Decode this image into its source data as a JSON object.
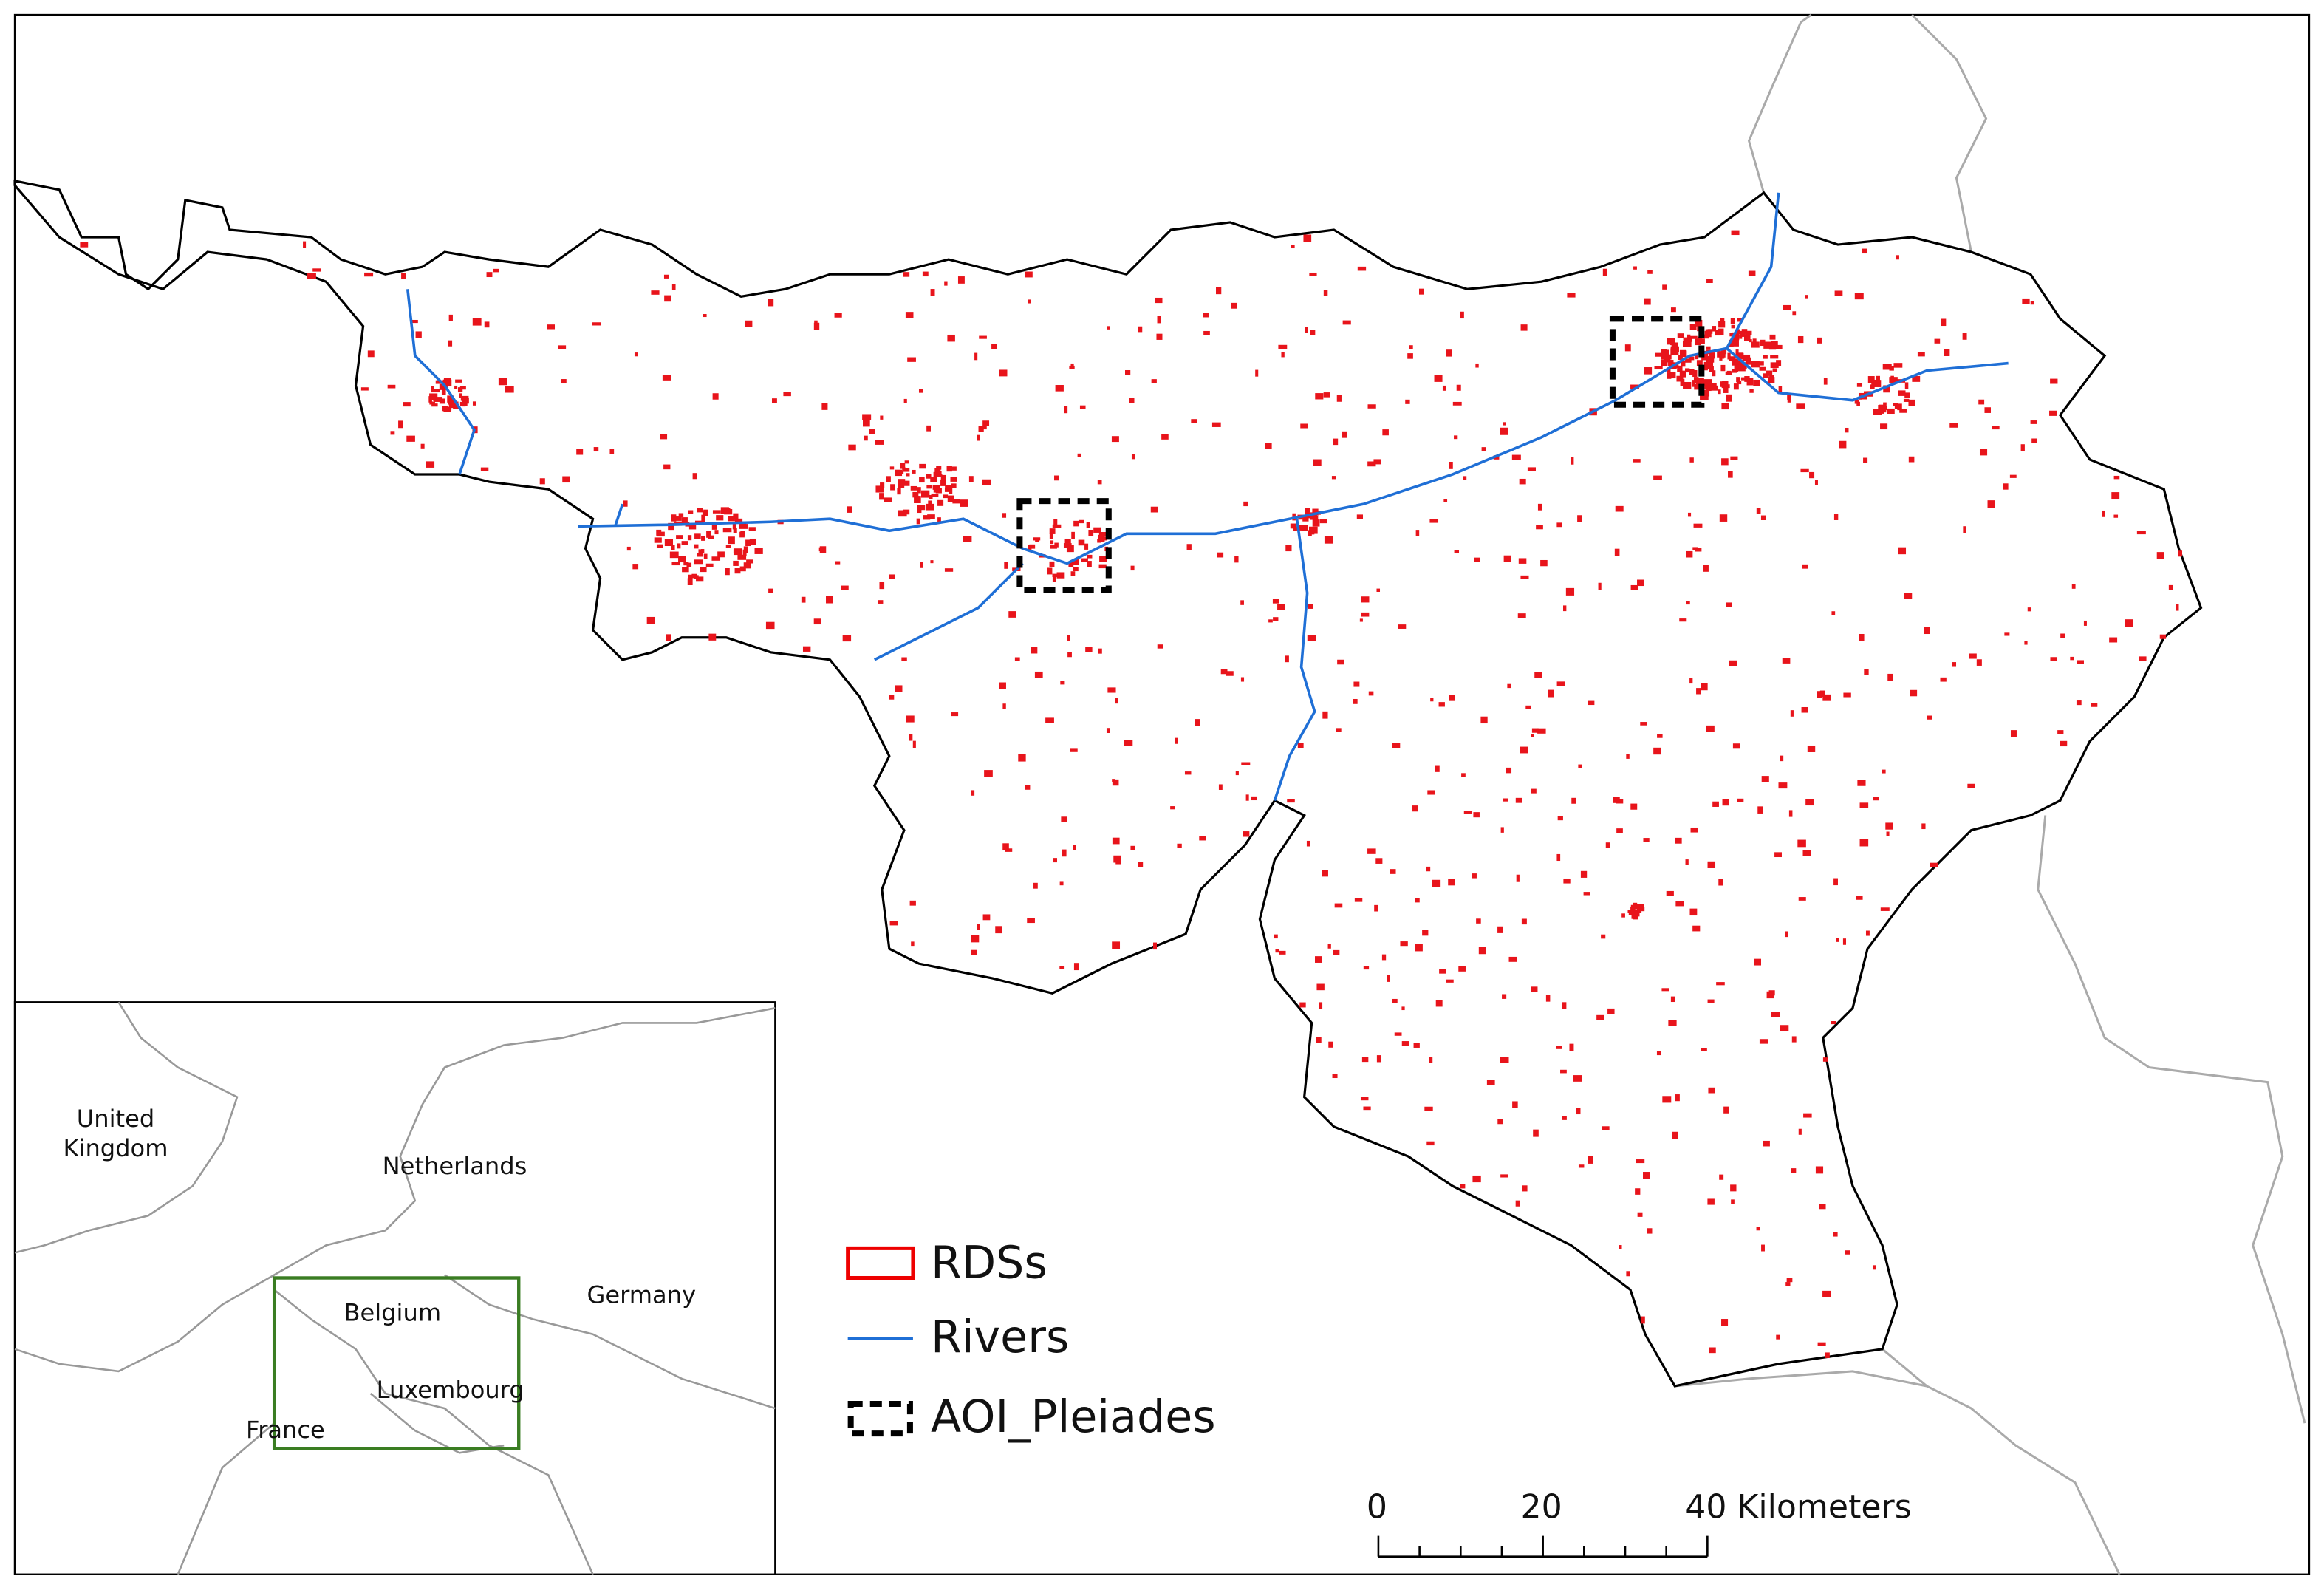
{
  "legend": {
    "items": [
      {
        "label": "RDSs"
      },
      {
        "label": "Rivers"
      },
      {
        "label": "AOI_Pleiades"
      }
    ]
  },
  "inset": {
    "labels": [
      "United Kingdom",
      "Netherlands",
      "Belgium",
      "Germany",
      "Luxembourg",
      "France"
    ]
  },
  "scale_bar": {
    "labels": [
      "0",
      "20",
      "40 Kilometers"
    ]
  }
}
